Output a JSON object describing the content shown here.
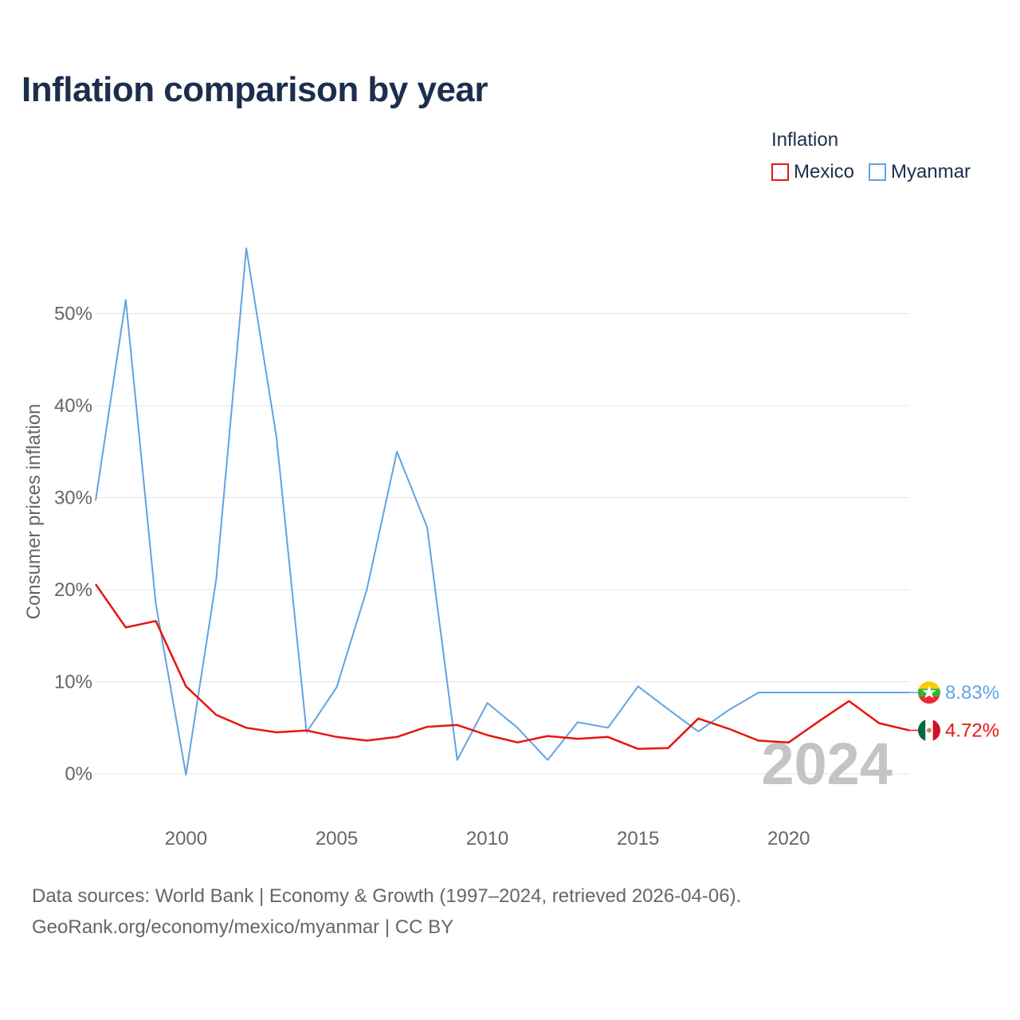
{
  "title": "Inflation comparison by year",
  "legend": {
    "title": "Inflation",
    "items": [
      {
        "label": "Mexico",
        "color": "#e8150f"
      },
      {
        "label": "Myanmar",
        "color": "#5fa4e2"
      }
    ]
  },
  "chart_data": {
    "type": "line",
    "title": "Inflation comparison by year",
    "ylabel": "Consumer prices inflation",
    "xlabel": "",
    "xlim": [
      1997,
      2024
    ],
    "ylim": [
      -4,
      58
    ],
    "x_ticks": [
      {
        "value": 2000,
        "label": "2000"
      },
      {
        "value": 2005,
        "label": "2005"
      },
      {
        "value": 2010,
        "label": "2010"
      },
      {
        "value": 2015,
        "label": "2015"
      },
      {
        "value": 2020,
        "label": "2020"
      }
    ],
    "y_ticks": [
      {
        "value": 0,
        "label": "0%"
      },
      {
        "value": 10,
        "label": "10%"
      },
      {
        "value": 20,
        "label": "20%"
      },
      {
        "value": 30,
        "label": "30%"
      },
      {
        "value": 40,
        "label": "40%"
      },
      {
        "value": 50,
        "label": "50%"
      }
    ],
    "grid": true,
    "year_watermark": "2024",
    "series": [
      {
        "name": "Mexico",
        "color": "#e8150f",
        "end_label": "4.72%",
        "points": [
          [
            1997,
            20.6
          ],
          [
            1998,
            15.9
          ],
          [
            1999,
            16.6
          ],
          [
            2000,
            9.5
          ],
          [
            2001,
            6.4
          ],
          [
            2002,
            5.0
          ],
          [
            2003,
            4.5
          ],
          [
            2004,
            4.7
          ],
          [
            2005,
            4.0
          ],
          [
            2006,
            3.6
          ],
          [
            2007,
            4.0
          ],
          [
            2008,
            5.1
          ],
          [
            2009,
            5.3
          ],
          [
            2010,
            4.2
          ],
          [
            2011,
            3.4
          ],
          [
            2012,
            4.1
          ],
          [
            2013,
            3.8
          ],
          [
            2014,
            4.0
          ],
          [
            2015,
            2.7
          ],
          [
            2016,
            2.8
          ],
          [
            2017,
            6.0
          ],
          [
            2018,
            4.9
          ],
          [
            2019,
            3.6
          ],
          [
            2020,
            3.4
          ],
          [
            2021,
            5.7
          ],
          [
            2022,
            7.9
          ],
          [
            2023,
            5.5
          ],
          [
            2024,
            4.72
          ]
        ]
      },
      {
        "name": "Myanmar",
        "color": "#5fa4e2",
        "end_label": "8.83%",
        "points": [
          [
            1997,
            29.7
          ],
          [
            1998,
            51.5
          ],
          [
            1999,
            18.4
          ],
          [
            2000,
            -0.1
          ],
          [
            2001,
            21.1
          ],
          [
            2002,
            57.1
          ],
          [
            2003,
            36.6
          ],
          [
            2004,
            4.5
          ],
          [
            2005,
            9.4
          ],
          [
            2006,
            20.0
          ],
          [
            2007,
            35.0
          ],
          [
            2008,
            26.8
          ],
          [
            2009,
            1.5
          ],
          [
            2010,
            7.7
          ],
          [
            2011,
            5.0
          ],
          [
            2012,
            1.5
          ],
          [
            2013,
            5.6
          ],
          [
            2014,
            5.0
          ],
          [
            2015,
            9.5
          ],
          [
            2016,
            7.0
          ],
          [
            2017,
            4.6
          ],
          [
            2018,
            6.9
          ],
          [
            2019,
            8.83
          ],
          [
            2024,
            8.83
          ]
        ]
      }
    ]
  },
  "footer": {
    "line1": "Data sources: World Bank | Economy & Growth (1997–2024, retrieved 2026-04-06).",
    "line2": "GeoRank.org/economy/mexico/myanmar | CC BY"
  }
}
